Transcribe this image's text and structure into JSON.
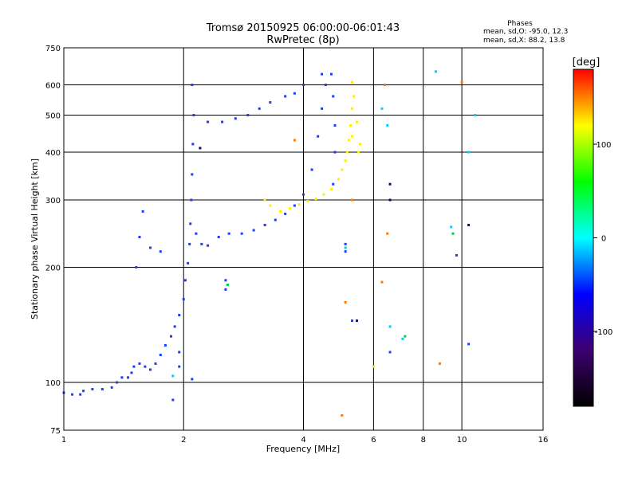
{
  "chart_data": {
    "type": "scatter",
    "title": "Tromsø 20150925 06:00:00-06:01:43",
    "subtitle": "RwPretec (8p)",
    "xlabel": "Frequency [MHz]",
    "ylabel": "Stationary phase Virtual Height [km]",
    "x_scale": "log",
    "y_scale": "log",
    "xlim": [
      1,
      16
    ],
    "ylim": [
      75,
      750
    ],
    "x_ticks": [
      1,
      2,
      4,
      6,
      8,
      10,
      16
    ],
    "y_ticks": [
      75,
      100,
      200,
      300,
      400,
      500,
      600,
      750
    ],
    "grid": true,
    "phases": {
      "heading": "Phases",
      "o_line": "mean, sd,O: -95.0, 12.3",
      "x_line": "mean, sd,X:  88.2, 13.8"
    },
    "colorbar": {
      "label": "[deg]",
      "range": [
        -180,
        180
      ],
      "ticks": [
        100,
        0,
        -100
      ],
      "colormap": [
        "#000000",
        "#3d0070",
        "#0000ff",
        "#00ffff",
        "#00ff00",
        "#ffff00",
        "#ff0000"
      ]
    },
    "series": [
      {
        "color": "#1a3cff",
        "points": [
          [
            1.0,
            94
          ],
          [
            1.05,
            93
          ],
          [
            1.1,
            93
          ],
          [
            1.12,
            95
          ],
          [
            1.18,
            96
          ],
          [
            1.25,
            96
          ],
          [
            1.32,
            97
          ],
          [
            1.36,
            100
          ],
          [
            1.4,
            103
          ],
          [
            1.45,
            103
          ],
          [
            1.48,
            106
          ],
          [
            1.5,
            110
          ],
          [
            1.55,
            112
          ],
          [
            1.6,
            110
          ],
          [
            1.65,
            108
          ],
          [
            1.7,
            112
          ],
          [
            1.75,
            118
          ],
          [
            1.8,
            125
          ],
          [
            1.86,
            132
          ],
          [
            1.9,
            140
          ],
          [
            1.95,
            150
          ],
          [
            2.0,
            165
          ],
          [
            2.02,
            185
          ],
          [
            2.05,
            205
          ],
          [
            2.07,
            230
          ],
          [
            2.08,
            260
          ],
          [
            2.09,
            300
          ],
          [
            2.1,
            350
          ],
          [
            2.11,
            420
          ],
          [
            2.12,
            500
          ],
          [
            2.1,
            600
          ],
          [
            2.15,
            245
          ],
          [
            2.22,
            230
          ],
          [
            2.3,
            228
          ],
          [
            2.45,
            240
          ],
          [
            2.6,
            245
          ],
          [
            2.8,
            245
          ],
          [
            3.0,
            250
          ],
          [
            3.2,
            258
          ],
          [
            3.4,
            266
          ],
          [
            3.6,
            276
          ],
          [
            3.8,
            290
          ],
          [
            4.0,
            310
          ],
          [
            4.2,
            360
          ],
          [
            4.35,
            440
          ],
          [
            4.45,
            520
          ],
          [
            4.55,
            600
          ],
          [
            4.45,
            640
          ],
          [
            4.7,
            640
          ],
          [
            4.75,
            560
          ],
          [
            4.8,
            470
          ],
          [
            4.8,
            400
          ],
          [
            4.75,
            330
          ],
          [
            1.52,
            200
          ],
          [
            1.55,
            240
          ],
          [
            1.58,
            280
          ],
          [
            1.65,
            225
          ],
          [
            1.75,
            220
          ],
          [
            2.3,
            480
          ],
          [
            2.5,
            480
          ],
          [
            2.7,
            490
          ],
          [
            2.9,
            500
          ],
          [
            3.1,
            520
          ],
          [
            3.3,
            540
          ],
          [
            3.6,
            560
          ],
          [
            3.8,
            570
          ],
          [
            4.0,
            600
          ],
          [
            1.95,
            110
          ],
          [
            1.95,
            120
          ],
          [
            2.55,
            175
          ],
          [
            2.55,
            185
          ],
          [
            5.1,
            230
          ],
          [
            5.1,
            220
          ],
          [
            5.3,
            145
          ],
          [
            6.6,
            120
          ],
          [
            10.4,
            126
          ],
          [
            9.7,
            215
          ],
          [
            2.1,
            102
          ],
          [
            1.88,
            90
          ]
        ]
      },
      {
        "color": "#ffee00",
        "points": [
          [
            3.2,
            300
          ],
          [
            3.3,
            290
          ],
          [
            3.5,
            280
          ],
          [
            3.7,
            285
          ],
          [
            3.9,
            292
          ],
          [
            4.1,
            298
          ],
          [
            4.3,
            302
          ],
          [
            4.5,
            310
          ],
          [
            4.7,
            320
          ],
          [
            4.9,
            340
          ],
          [
            5.0,
            360
          ],
          [
            5.1,
            380
          ],
          [
            5.15,
            400
          ],
          [
            5.2,
            430
          ],
          [
            5.25,
            470
          ],
          [
            5.3,
            520
          ],
          [
            5.35,
            560
          ],
          [
            5.3,
            610
          ],
          [
            5.45,
            480
          ],
          [
            5.5,
            400
          ],
          [
            5.55,
            420
          ],
          [
            5.3,
            440
          ],
          [
            6.0,
            110
          ]
        ]
      },
      {
        "color": "#ff7700",
        "points": [
          [
            5.1,
            162
          ],
          [
            5.0,
            82
          ],
          [
            6.3,
            183
          ],
          [
            6.5,
            245
          ],
          [
            6.4,
            600
          ],
          [
            10.0,
            610
          ],
          [
            8.8,
            112
          ],
          [
            3.8,
            430
          ],
          [
            5.3,
            300
          ]
        ]
      },
      {
        "color": "#00ccff",
        "points": [
          [
            5.1,
            225
          ],
          [
            6.3,
            520
          ],
          [
            6.5,
            470
          ],
          [
            8.6,
            650
          ],
          [
            10.8,
            500
          ],
          [
            10.4,
            400
          ],
          [
            9.4,
            255
          ],
          [
            1.88,
            104
          ],
          [
            7.1,
            130
          ],
          [
            6.6,
            140
          ]
        ]
      },
      {
        "color": "#00cc44",
        "points": [
          [
            9.5,
            245
          ],
          [
            7.2,
            132
          ],
          [
            2.58,
            180
          ]
        ]
      },
      {
        "color": "#1a0070",
        "points": [
          [
            6.6,
            330
          ],
          [
            6.6,
            300
          ],
          [
            5.45,
            145
          ],
          [
            10.4,
            258
          ],
          [
            2.2,
            410
          ]
        ]
      }
    ]
  }
}
